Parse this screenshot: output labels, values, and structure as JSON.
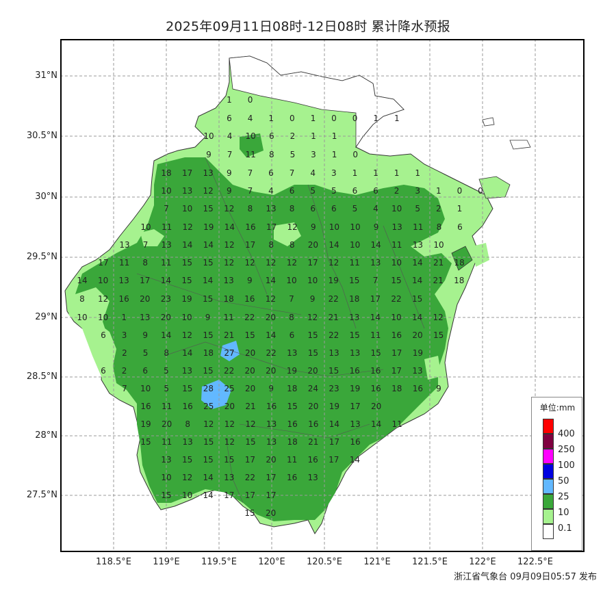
{
  "title": "2025年09月11日08时-12日08时 累计降水预报",
  "lat_ticks": [
    "31°N",
    "30.5°N",
    "30°N",
    "29.5°N",
    "29°N",
    "28.5°N",
    "28°N",
    "27.5°N"
  ],
  "lon_ticks": [
    "118.5°E",
    "119°E",
    "119.5°E",
    "120°E",
    "120.5°E",
    "121°E",
    "121.5°E",
    "122°E",
    "122.5°E"
  ],
  "legend": {
    "title": "单位:mm",
    "items": [
      {
        "label": "",
        "color": "#ff0000"
      },
      {
        "label": "400",
        "color": "#7f0040"
      },
      {
        "label": "250",
        "color": "#ff00ff"
      },
      {
        "label": "100",
        "color": "#0000e0"
      },
      {
        "label": "50",
        "color": "#62b8ff"
      },
      {
        "label": "25",
        "color": "#3aa73a"
      },
      {
        "label": "10",
        "color": "#a6f28f"
      },
      {
        "label": "0.1",
        "color": "#ffffff"
      }
    ]
  },
  "footer": "浙江省气象台 09月09日05:57 发布",
  "rows": [
    [
      "1",
      "0"
    ],
    [
      "6",
      "4",
      "1",
      "0",
      "1",
      "0",
      "0",
      "1",
      "1"
    ],
    [
      "10",
      "4",
      "10",
      "6",
      "2",
      "1",
      "1"
    ],
    [
      "9",
      "7",
      "11",
      "8",
      "5",
      "3",
      "1",
      "0"
    ],
    [
      "18",
      "17",
      "13",
      "9",
      "7",
      "6",
      "7",
      "4",
      "3",
      "1",
      "1",
      "1",
      "1"
    ],
    [
      "10",
      "13",
      "12",
      "9",
      "7",
      "4",
      "6",
      "5",
      "5",
      "6",
      "6",
      "2",
      "3",
      "1",
      "0",
      "0"
    ],
    [
      "7",
      "10",
      "15",
      "12",
      "8",
      "13",
      "8",
      "6",
      "6",
      "5",
      "4",
      "10",
      "5",
      "2",
      "1"
    ],
    [
      "10",
      "11",
      "12",
      "19",
      "14",
      "16",
      "17",
      "12",
      "9",
      "10",
      "10",
      "9",
      "13",
      "11",
      "8",
      "6"
    ],
    [
      "13",
      "7",
      "13",
      "14",
      "14",
      "12",
      "17",
      "8",
      "8",
      "20",
      "14",
      "10",
      "14",
      "11",
      "13",
      "10"
    ],
    [
      "17",
      "11",
      "8",
      "11",
      "15",
      "15",
      "12",
      "12",
      "12",
      "12",
      "17",
      "12",
      "11",
      "13",
      "10",
      "14",
      "21",
      "18"
    ],
    [
      "14",
      "10",
      "13",
      "17",
      "14",
      "15",
      "14",
      "13",
      "9",
      "14",
      "10",
      "10",
      "19",
      "15",
      "7",
      "15",
      "14",
      "21",
      "18"
    ],
    [
      "8",
      "12",
      "16",
      "20",
      "23",
      "19",
      "15",
      "18",
      "16",
      "12",
      "7",
      "9",
      "22",
      "18",
      "17",
      "22",
      "15"
    ],
    [
      "10",
      "10",
      "1",
      "13",
      "20",
      "10",
      "9",
      "11",
      "22",
      "20",
      "8",
      "12",
      "21",
      "13",
      "14",
      "10",
      "14",
      "12"
    ],
    [
      "6",
      "3",
      "9",
      "14",
      "12",
      "15",
      "21",
      "15",
      "14",
      "6",
      "15",
      "22",
      "15",
      "11",
      "16",
      "20",
      "15"
    ],
    [
      "2",
      "5",
      "8",
      "14",
      "18",
      "27",
      "20",
      "22",
      "13",
      "15",
      "13",
      "13",
      "15",
      "17",
      "19"
    ],
    [
      "6",
      "2",
      "6",
      "5",
      "13",
      "15",
      "22",
      "20",
      "20",
      "19",
      "20",
      "15",
      "16",
      "16",
      "17",
      "13"
    ],
    [
      "7",
      "10",
      "5",
      "15",
      "28",
      "25",
      "20",
      "9",
      "18",
      "24",
      "23",
      "19",
      "16",
      "18",
      "16",
      "9"
    ],
    [
      "16",
      "11",
      "16",
      "25",
      "20",
      "21",
      "16",
      "15",
      "20",
      "19",
      "17",
      "20"
    ],
    [
      "19",
      "20",
      "8",
      "12",
      "12",
      "12",
      "13",
      "16",
      "16",
      "14",
      "13",
      "14",
      "11"
    ],
    [
      "15",
      "11",
      "13",
      "15",
      "12",
      "15",
      "13",
      "18",
      "21",
      "17",
      "16"
    ],
    [
      "13",
      "15",
      "15",
      "15",
      "17",
      "20",
      "11",
      "16",
      "17",
      "14"
    ],
    [
      "10",
      "12",
      "14",
      "13",
      "22",
      "17",
      "16",
      "13"
    ],
    [
      "15",
      "10",
      "14",
      "17",
      "17",
      "17"
    ],
    [
      "15",
      "20"
    ]
  ]
}
